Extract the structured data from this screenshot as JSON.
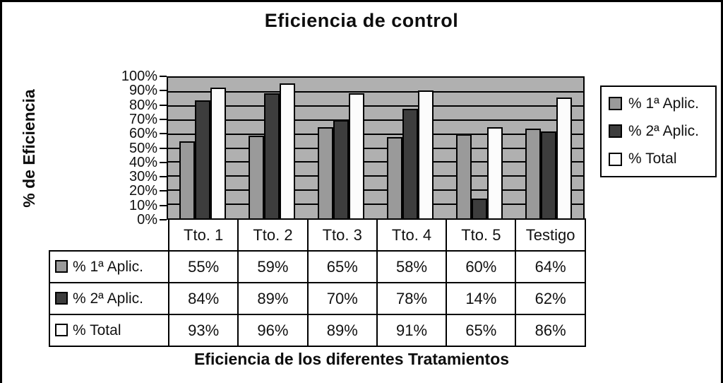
{
  "chart_data": {
    "type": "bar",
    "title": "Eficiencia de control",
    "xlabel": "Eficiencia de los diferentes Tratamientos",
    "ylabel": "% de Eficiencia",
    "categories": [
      "Tto. 1",
      "Tto. 2",
      "Tto. 3",
      "Tto. 4",
      "Tto. 5",
      "Testigo"
    ],
    "series": [
      {
        "name": "% 1ª Aplic.",
        "color": "#9a9a9a",
        "values": [
          55,
          59,
          65,
          58,
          60,
          64
        ]
      },
      {
        "name": "% 2ª Aplic.",
        "color": "#3d3d3d",
        "values": [
          84,
          89,
          70,
          78,
          14,
          62
        ]
      },
      {
        "name": "% Total",
        "color": "#fcfcfc",
        "values": [
          93,
          96,
          89,
          91,
          65,
          86
        ]
      }
    ],
    "value_suffix": "%",
    "ylim": [
      0,
      100
    ],
    "ytick_step": 10,
    "y_tick_labels": [
      "0%",
      "10%",
      "20%",
      "30%",
      "40%",
      "50%",
      "60%",
      "70%",
      "80%",
      "90%",
      "100%"
    ],
    "grid": true,
    "plot_bg": "#b0b0b0",
    "grid_color": "#000000",
    "legend_position": "right",
    "data_table_shown": true
  }
}
